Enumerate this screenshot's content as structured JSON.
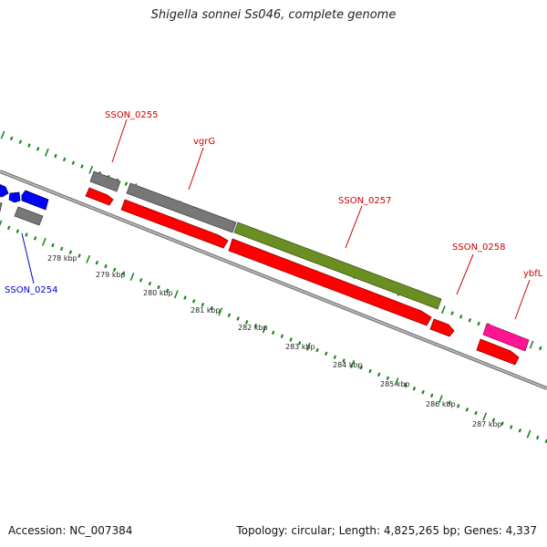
{
  "title": "Shigella sonnei Ss046, complete genome",
  "footer": {
    "accession": "Accession: NC_007384",
    "summary": "Topology: circular; Length: 4,825,265 bp; Genes: 4,337"
  },
  "colors": {
    "backbone": "#8c8c8c",
    "ticks": "#1a8a1a",
    "cds_forward_red": "#ff0000",
    "cds_gray": "#777777",
    "cds_olive": "#6b8e23",
    "cds_magenta": "#ff1493",
    "cds_blue": "#0000ff",
    "label_red": "#cc0000",
    "label_blue": "#0000cc"
  },
  "scale_labels": [
    "278 kbp",
    "279 kbp",
    "280 kbp",
    "281 kbp",
    "282 kbp",
    "283 kbp",
    "284 kbp",
    "285 kbp",
    "286 kbp",
    "287 kbp"
  ],
  "gene_labels": [
    {
      "id": "SSON_0255",
      "color": "red"
    },
    {
      "id": "vgrG",
      "color": "red"
    },
    {
      "id": "SSON_0257",
      "color": "red"
    },
    {
      "id": "SSON_0258",
      "color": "red"
    },
    {
      "id": "ybfL",
      "color": "red"
    },
    {
      "id": "SSON_0254",
      "color": "blue"
    }
  ]
}
